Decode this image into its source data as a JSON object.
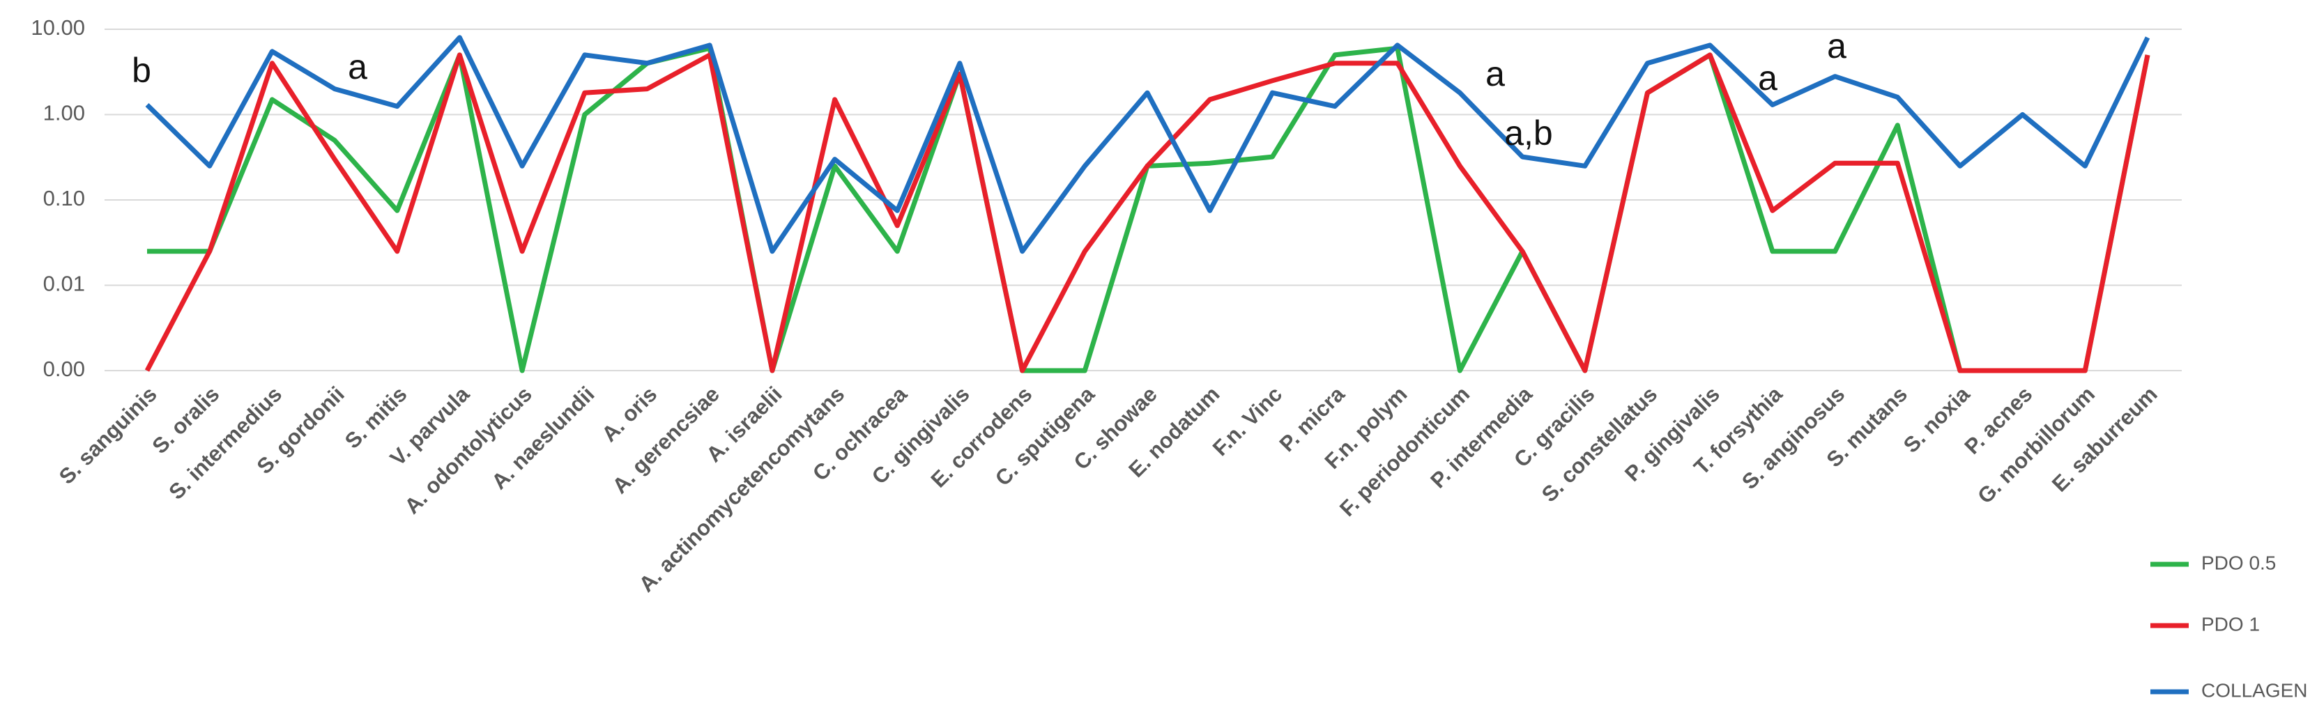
{
  "chart_data": {
    "type": "line",
    "log_scale": true,
    "grid": true,
    "legend": "bottom-right",
    "categories": [
      "S. sanguinis",
      "S. oralis",
      "S. intermedius",
      "S. gordonii",
      "S. mitis",
      "V. parvula",
      "A. odontolyticus",
      "A. naeslundii",
      "A. oris",
      "A. gerencsiae",
      "A. israelii",
      "A. actinomycetencomytans",
      "C. ochracea",
      "C. gingivalis",
      "E. corrodens",
      "C. sputigena",
      "C. showae",
      "E. nodatum",
      "F.n. Vinc",
      "P. micra",
      "F.n. polym",
      "F. periodonticum",
      "P. intermedia",
      "C. gracilis",
      "S. constellatus",
      "P. gingivalis",
      "T. forsythia",
      "S. anginosus",
      "S. mutans",
      "S. noxia",
      "P. acnes",
      "G. morbillorum",
      "E. saburreum"
    ],
    "series": [
      {
        "name": "PDO 0.5",
        "color": "#2db34a",
        "values": [
          0.025,
          0.025,
          1.5,
          0.5,
          0.075,
          5,
          0.001,
          1.0,
          4,
          6,
          0.001,
          0.25,
          0.025,
          3,
          0.001,
          0.001,
          0.25,
          0.27,
          0.32,
          5,
          6,
          0.001,
          0.025,
          0.001,
          1.8,
          5,
          0.025,
          0.025,
          0.75,
          0.001,
          0.001,
          0.001,
          5
        ]
      },
      {
        "name": "PDO 1",
        "color": "#e8202a",
        "values": [
          0.001,
          0.025,
          4,
          0.3,
          0.025,
          5,
          0.025,
          1.8,
          2,
          5,
          0.001,
          1.5,
          0.05,
          3,
          0.001,
          0.025,
          0.25,
          1.5,
          2.5,
          4,
          4,
          0.25,
          0.025,
          0.001,
          1.8,
          5,
          0.075,
          0.27,
          0.27,
          0.001,
          0.001,
          0.001,
          5
        ]
      },
      {
        "name": "COLLAGEN",
        "color": "#1f6fc0",
        "values": [
          1.3,
          0.25,
          5.5,
          2,
          1.25,
          8,
          0.25,
          5,
          4,
          6.5,
          0.025,
          0.3,
          0.075,
          4,
          0.025,
          0.25,
          1.8,
          0.075,
          1.8,
          1.25,
          6.5,
          1.8,
          0.32,
          0.25,
          4,
          6.5,
          1.3,
          2.8,
          1.6,
          0.25,
          1.0,
          0.25,
          8
        ]
      }
    ],
    "ylim": [
      0.001,
      10
    ],
    "yticks": [
      {
        "value": 0.001,
        "label": "0.00"
      },
      {
        "value": 0.01,
        "label": "0.01"
      },
      {
        "value": 0.1,
        "label": "0.10"
      },
      {
        "value": 1,
        "label": "1.00"
      },
      {
        "value": 10,
        "label": "10.00"
      }
    ],
    "annotations": [
      "b",
      "a",
      "a",
      "a,b",
      "a",
      "a"
    ]
  }
}
